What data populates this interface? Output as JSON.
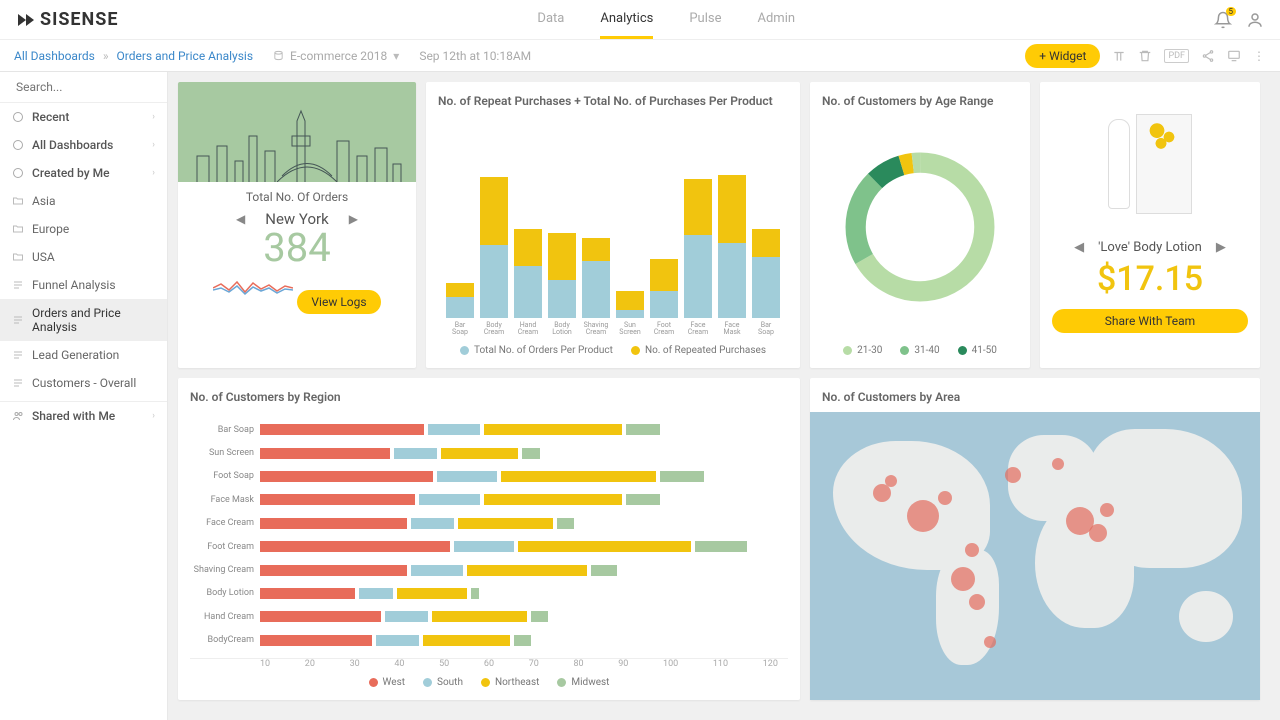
{
  "nav": {
    "tabs": [
      "Data",
      "Analytics",
      "Pulse",
      "Admin"
    ],
    "active": 1,
    "notif": "5"
  },
  "breadcrumb": {
    "root": "All Dashboards",
    "current": "Orders and Price Analysis",
    "context": "E-commerce 2018",
    "timestamp": "Sep 12th at 10:18AM",
    "addWidget": "+  Widget"
  },
  "sidebar": {
    "searchPlaceholder": "Search...",
    "groups": [
      {
        "label": "Recent",
        "icon": "clock"
      },
      {
        "label": "All Dashboards",
        "icon": "list"
      },
      {
        "label": "Created by Me",
        "icon": "user"
      }
    ],
    "folders": [
      "Asia",
      "Europe",
      "USA",
      "Funnel Analysis",
      "Orders and Price Analysis",
      "Lead Generation",
      "Customers - Overall"
    ],
    "activeFolder": 4,
    "shared": "Shared with Me"
  },
  "orders": {
    "title": "Total No. Of Orders",
    "city": "New York",
    "value": "384",
    "btn": "View Logs"
  },
  "stacked": {
    "title": "No. of Repeat Purchases + Total No. of Purchases Per Product",
    "labels": [
      "Bar Soap",
      "Body Cream",
      "Hand Cream",
      "Body Lotion",
      "Shaving Cream",
      "Sun Screen",
      "Foot Cream",
      "Face Cream",
      "Face Mask",
      "Bar Soap"
    ],
    "a": [
      22,
      78,
      55,
      40,
      60,
      8,
      28,
      88,
      80,
      65
    ],
    "b": [
      15,
      72,
      40,
      50,
      25,
      20,
      35,
      60,
      72,
      30
    ],
    "colorA": "#a1cdd9",
    "colorB": "#f1c40f",
    "legendA": "Total No. of Orders Per Product",
    "legendB": "No. of Repeated Purchases"
  },
  "donut": {
    "title": "No. of Customers by Age Range",
    "slices": [
      {
        "label": "21-30",
        "value": 70,
        "color": "#b7dca6"
      },
      {
        "label": "31-40",
        "value": 22,
        "color": "#7fc28b"
      },
      {
        "label": "41-50",
        "value": 8,
        "color": "#2a8a5c"
      }
    ],
    "accent": [
      {
        "color": "#f1c40f",
        "value": 3
      }
    ]
  },
  "product": {
    "name": "'Love' Body Lotion",
    "price": "$17.15",
    "btn": "Share With Team"
  },
  "region": {
    "title": "No. of Customers by Region",
    "cats": [
      "Bar Soap",
      "Sun Screen",
      "Foot Soap",
      "Face Mask",
      "Face Cream",
      "Foot Cream",
      "Shaving Cream",
      "Body Lotion",
      "Hand Cream",
      "BodyCream"
    ],
    "series": [
      {
        "name": "West",
        "color": "#e86c5a"
      },
      {
        "name": "South",
        "color": "#a1cdd9"
      },
      {
        "name": "Northeast",
        "color": "#f1c40f"
      },
      {
        "name": "Midwest",
        "color": "#a7c9a1"
      }
    ],
    "data": [
      [
        38,
        12,
        32,
        8
      ],
      [
        30,
        10,
        18,
        4
      ],
      [
        40,
        14,
        36,
        10
      ],
      [
        36,
        14,
        32,
        8
      ],
      [
        34,
        10,
        22,
        4
      ],
      [
        44,
        14,
        40,
        12
      ],
      [
        34,
        12,
        28,
        6
      ],
      [
        22,
        8,
        16,
        2
      ],
      [
        28,
        10,
        22,
        4
      ],
      [
        26,
        10,
        20,
        4
      ]
    ],
    "xmax": 120,
    "ticks": [
      "10",
      "20",
      "30",
      "40",
      "50",
      "60",
      "70",
      "80",
      "90",
      "100",
      "110",
      "120"
    ]
  },
  "mapCard": {
    "title": "No. of Customers by Area",
    "bubbles": [
      {
        "x": 16,
        "y": 28,
        "r": 9
      },
      {
        "x": 18,
        "y": 24,
        "r": 6
      },
      {
        "x": 25,
        "y": 36,
        "r": 16
      },
      {
        "x": 30,
        "y": 30,
        "r": 7
      },
      {
        "x": 34,
        "y": 58,
        "r": 12
      },
      {
        "x": 36,
        "y": 48,
        "r": 7
      },
      {
        "x": 40,
        "y": 80,
        "r": 6
      },
      {
        "x": 60,
        "y": 38,
        "r": 14
      },
      {
        "x": 64,
        "y": 42,
        "r": 9
      },
      {
        "x": 66,
        "y": 34,
        "r": 7
      },
      {
        "x": 45,
        "y": 22,
        "r": 8
      },
      {
        "x": 55,
        "y": 18,
        "r": 6
      },
      {
        "x": 37,
        "y": 66,
        "r": 8
      }
    ]
  }
}
